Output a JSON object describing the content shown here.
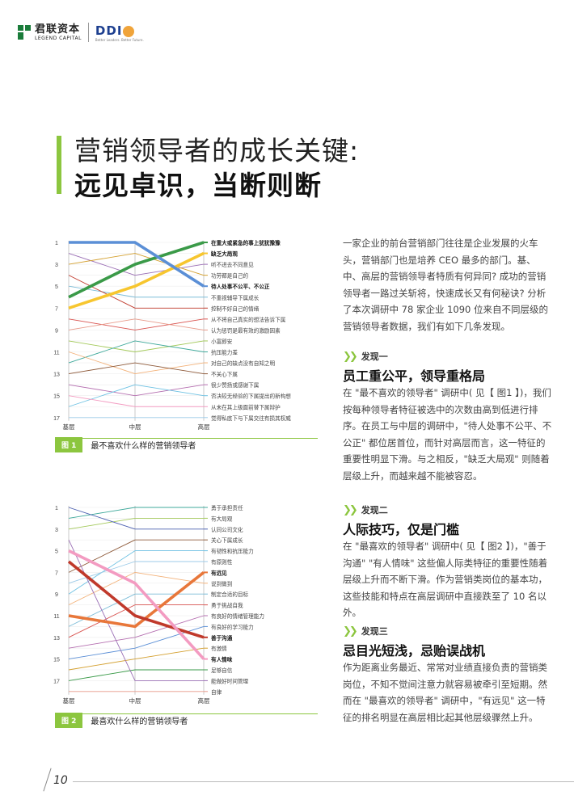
{
  "header": {
    "legend_cn": "君联资本",
    "legend_en": "LEGEND CAPITAL",
    "ddi": "DDI",
    "ddi_sub": "Better Leaders. Better Future."
  },
  "title": {
    "line1": "营销领导者的成长关键:",
    "line2": "远见卓识，当断则断"
  },
  "intro": "一家企业的前台营销部门往往是企业发展的火车头，营销部门也是培养 CEO 最多的部门。基、中、高层的营销领导者特质有何异同? 成功的营销领导者一路过关斩将，快速成长又有何秘诀? 分析了本次调研中 78 家企业 1090 位来自不同层级的营销领导者数据，我们有如下几条发现。",
  "findings": [
    {
      "label": "发现一",
      "title": "员工重公平，领导重格局",
      "body": "在 \"最不喜欢的领导者\" 调研中( 见【 图1 】)，我们按每种领导者特征被选中的次数由高到低进行排序。在员工与中层的调研中，\"待人处事不公平、不公正\" 都位居首位，而针对高层而言，这一特征的重要性明显下滑。与之相反，\"缺乏大局观\" 则随着层级上升，而越来越不能被容忍。"
    },
    {
      "label": "发现二",
      "title": "人际技巧，仅是门槛",
      "body": "在 \"最喜欢的领导者\" 调研中( 见【 图2 】)，\"善于沟通\" \"有人情味\" 这些偏人际类特征的重要性随着层级上升而不断下滑。作为营销类岗位的基本功，这些技能和特点在高层调研中直接跌至了 10 名以外。"
    },
    {
      "label": "发现三",
      "title": "忌目光短浅，忌贻误战机",
      "body": "作为距离业务最近、常常对业绩直接负责的营销类岗位，不知不觉间注意力就容易被牵引至短期。然而在 \"最喜欢的领导者\" 调研中，\"有远见\" 这一特征的排名明显在高层相比起其他层级骤然上升。"
    }
  ],
  "figure1": {
    "tag": "图 1",
    "caption": "最不喜欢什么样的营销领导者"
  },
  "figure2": {
    "tag": "图 2",
    "caption": "最喜欢什么样的营销领导者"
  },
  "chart_data": [
    {
      "type": "line",
      "title": "最不喜欢什么样的营销领导者",
      "categories": [
        "基层",
        "中层",
        "高层"
      ],
      "y_ticks": [
        1,
        3,
        5,
        7,
        9,
        11,
        13,
        15,
        17
      ],
      "ylim": [
        1,
        17
      ],
      "y_inverted": true,
      "series": [
        {
          "name": "在重大或紧急的事上犹犹豫豫",
          "values": [
            6,
            3,
            1
          ],
          "color": "#3a9a48",
          "bold": true
        },
        {
          "name": "缺乏大局观",
          "values": [
            7,
            5,
            2
          ],
          "color": "#f7c62f",
          "bold": true
        },
        {
          "name": "听不进去不同意见",
          "values": [
            2,
            4,
            3
          ],
          "color": "#9b6fb5"
        },
        {
          "name": "功劳都是自己的",
          "values": [
            3,
            2,
            4
          ],
          "color": "#d4a030"
        },
        {
          "name": "待人处事不公平、不公正",
          "values": [
            1,
            1,
            5
          ],
          "color": "#5b8fd6",
          "bold": true
        },
        {
          "name": "不重视辅导下属成长",
          "values": [
            5,
            6,
            6
          ],
          "color": "#7dbdd8"
        },
        {
          "name": "控制不好自己的情绪",
          "values": [
            4,
            7,
            7
          ],
          "color": "#c0392b"
        },
        {
          "name": "从不将自己真实的想法告诉下属",
          "values": [
            8,
            9,
            8
          ],
          "color": "#d9534f"
        },
        {
          "name": "认为惩罚是最有效的激励因素",
          "values": [
            9,
            8,
            9
          ],
          "color": "#e89a8a"
        },
        {
          "name": "小富即安",
          "values": [
            10,
            11,
            10
          ],
          "color": "#a3c95a"
        },
        {
          "name": "抗压能力差",
          "values": [
            12,
            10,
            11
          ],
          "color": "#3fa99b"
        },
        {
          "name": "对自己的缺点没有自知之明",
          "values": [
            11,
            13,
            12
          ],
          "color": "#f3b27a"
        },
        {
          "name": "不关心下属",
          "values": [
            13,
            12,
            13
          ],
          "color": "#8e5a3a"
        },
        {
          "name": "很少赞扬或感谢下属",
          "values": [
            14,
            15,
            14
          ],
          "color": "#b56fb0"
        },
        {
          "name": "否决较无经验的下属提出的新构想",
          "values": [
            16,
            14,
            15
          ],
          "color": "#6fc2e3"
        },
        {
          "name": "从未在其上级面前替下属辩护",
          "values": [
            15,
            16,
            16
          ],
          "color": "#f39bc1"
        },
        {
          "name": "觉得私底下与下属交往有损其权威",
          "values": [
            17,
            17,
            17
          ],
          "color": "#9ccbe8"
        }
      ]
    },
    {
      "type": "line",
      "title": "最喜欢什么样的营销领导者",
      "categories": [
        "基层",
        "中层",
        "高层"
      ],
      "y_ticks": [
        1,
        3,
        5,
        7,
        9,
        11,
        13,
        15,
        17
      ],
      "ylim": [
        1,
        18
      ],
      "y_inverted": true,
      "series": [
        {
          "name": "勇于承担责任",
          "values": [
            2,
            1,
            1
          ],
          "color": "#3fa99b"
        },
        {
          "name": "有大局观",
          "values": [
            3,
            2,
            2
          ],
          "color": "#a3c95a"
        },
        {
          "name": "认同公司文化",
          "values": [
            1,
            3,
            3
          ],
          "color": "#4b5fb0"
        },
        {
          "name": "关心下属成长",
          "values": [
            7,
            4,
            4
          ],
          "color": "#8e5a3a"
        },
        {
          "name": "有韧性和抗压能力",
          "values": [
            9,
            5,
            5
          ],
          "color": "#6fc2e3"
        },
        {
          "name": "有原则性",
          "values": [
            8,
            6,
            6
          ],
          "color": "#9ccbe8"
        },
        {
          "name": "有远见",
          "values": [
            11,
            12,
            7
          ],
          "color": "#e8773a",
          "bold": true
        },
        {
          "name": "说到做到",
          "values": [
            10,
            7,
            8
          ],
          "color": "#f3b27a"
        },
        {
          "name": "制定合适的目标",
          "values": [
            12,
            9,
            9
          ],
          "color": "#7dbdd8"
        },
        {
          "name": "勇于挑战自我",
          "values": [
            13,
            10,
            10
          ],
          "color": "#d9534f"
        },
        {
          "name": "有良好的情绪管理能力",
          "values": [
            14,
            13,
            11
          ],
          "color": "#b56fb0"
        },
        {
          "name": "有良好的学习能力",
          "values": [
            15,
            14,
            12
          ],
          "color": "#5b8fd6"
        },
        {
          "name": "善于沟通",
          "values": [
            6,
            11,
            13
          ],
          "color": "#c0392b",
          "bold": true
        },
        {
          "name": "有激情",
          "values": [
            16,
            15,
            14
          ],
          "color": "#d4a030"
        },
        {
          "name": "有人情味",
          "values": [
            5,
            8,
            15
          ],
          "color": "#f39bc1",
          "bold": true
        },
        {
          "name": "足够自信",
          "values": [
            17,
            16,
            16
          ],
          "color": "#3a9a48"
        },
        {
          "name": "能做好时间管理",
          "values": [
            4,
            17,
            17
          ],
          "color": "#9b6fb5"
        },
        {
          "name": "自律",
          "values": [
            18,
            18,
            18
          ],
          "color": "#e89a8a"
        }
      ]
    }
  ],
  "page_number": "10"
}
